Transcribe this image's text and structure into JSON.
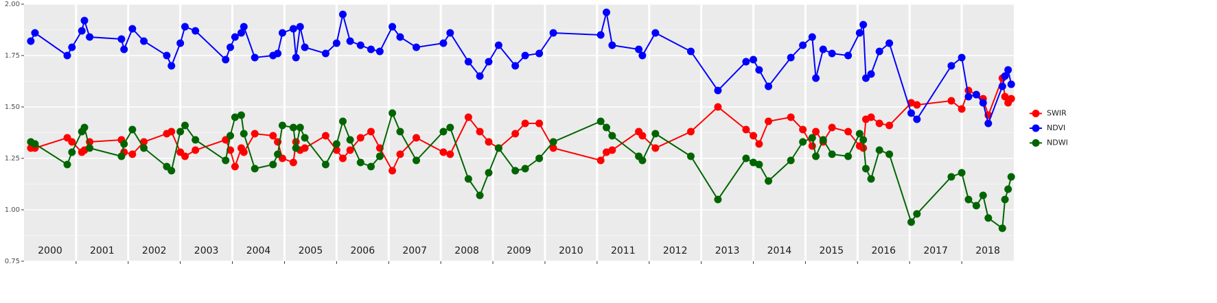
{
  "chart_data": {
    "type": "line",
    "year_labels": [
      "2000",
      "2001",
      "2002",
      "2003",
      "2004",
      "2005",
      "2006",
      "2007",
      "2008",
      "2009",
      "2010",
      "2011",
      "2012",
      "2013",
      "2014",
      "2015",
      "2016",
      "2017",
      "2018"
    ],
    "x": [
      2000.13,
      2000.21,
      2000.83,
      2000.92,
      2001.11,
      2001.16,
      2001.26,
      2001.87,
      2001.92,
      2002.08,
      2002.3,
      2002.74,
      2002.83,
      2003.0,
      2003.09,
      2003.29,
      2003.87,
      2003.96,
      2004.05,
      2004.17,
      2004.22,
      2004.43,
      2004.78,
      2004.87,
      2004.96,
      2005.17,
      2005.22,
      2005.3,
      2005.39,
      2005.79,
      2006.0,
      2006.12,
      2006.26,
      2006.46,
      2006.66,
      2006.83,
      2007.07,
      2007.22,
      2007.53,
      2008.05,
      2008.18,
      2008.53,
      2008.75,
      2008.92,
      2009.11,
      2009.43,
      2009.62,
      2009.89,
      2010.16,
      2011.07,
      2011.18,
      2011.29,
      2011.8,
      2011.87,
      2012.12,
      2012.8,
      2013.32,
      2013.86,
      2014.0,
      2014.11,
      2014.29,
      2014.72,
      2014.95,
      2015.13,
      2015.2,
      2015.34,
      2015.51,
      2015.82,
      2016.04,
      2016.11,
      2016.16,
      2016.26,
      2016.42,
      2016.61,
      2017.03,
      2017.14,
      2017.8,
      2018.0,
      2018.13,
      2018.28,
      2018.41,
      2018.51,
      2018.78,
      2018.83,
      2018.89,
      2018.95
    ],
    "series": [
      {
        "name": "SWIR",
        "color": "#ff0000",
        "values": [
          1.3,
          1.3,
          1.35,
          1.33,
          1.28,
          1.29,
          1.33,
          1.34,
          1.28,
          1.27,
          1.33,
          1.37,
          1.38,
          1.28,
          1.26,
          1.29,
          1.34,
          1.29,
          1.21,
          1.3,
          1.28,
          1.37,
          1.36,
          1.33,
          1.25,
          1.23,
          1.33,
          1.29,
          1.3,
          1.36,
          1.29,
          1.25,
          1.29,
          1.35,
          1.38,
          1.3,
          1.19,
          1.27,
          1.35,
          1.28,
          1.27,
          1.45,
          1.38,
          1.33,
          1.3,
          1.37,
          1.42,
          1.42,
          1.3,
          1.24,
          1.28,
          1.29,
          1.38,
          1.36,
          1.3,
          1.38,
          1.5,
          1.39,
          1.36,
          1.32,
          1.43,
          1.45,
          1.39,
          1.31,
          1.38,
          1.33,
          1.4,
          1.38,
          1.31,
          1.3,
          1.44,
          1.45,
          1.42,
          1.41,
          1.52,
          1.51,
          1.53,
          1.49,
          1.58,
          1.56,
          1.54,
          1.46,
          1.64,
          1.55,
          1.52,
          1.54
        ]
      },
      {
        "name": "NDVI",
        "color": "#0000ff",
        "values": [
          1.82,
          1.86,
          1.75,
          1.79,
          1.87,
          1.92,
          1.84,
          1.83,
          1.78,
          1.88,
          1.82,
          1.75,
          1.7,
          1.81,
          1.89,
          1.87,
          1.73,
          1.79,
          1.84,
          1.86,
          1.89,
          1.74,
          1.75,
          1.76,
          1.86,
          1.88,
          1.74,
          1.89,
          1.79,
          1.76,
          1.81,
          1.95,
          1.82,
          1.8,
          1.78,
          1.77,
          1.89,
          1.84,
          1.79,
          1.81,
          1.86,
          1.72,
          1.65,
          1.72,
          1.8,
          1.7,
          1.75,
          1.76,
          1.86,
          1.85,
          1.96,
          1.8,
          1.78,
          1.75,
          1.86,
          1.77,
          1.58,
          1.72,
          1.73,
          1.68,
          1.6,
          1.74,
          1.8,
          1.84,
          1.64,
          1.78,
          1.76,
          1.75,
          1.86,
          1.9,
          1.64,
          1.66,
          1.77,
          1.81,
          1.47,
          1.44,
          1.7,
          1.74,
          1.55,
          1.56,
          1.52,
          1.42,
          1.6,
          1.65,
          1.68,
          1.61
        ]
      },
      {
        "name": "NDWI",
        "color": "#006400",
        "values": [
          1.33,
          1.32,
          1.22,
          1.28,
          1.38,
          1.4,
          1.3,
          1.26,
          1.32,
          1.39,
          1.3,
          1.21,
          1.19,
          1.38,
          1.41,
          1.34,
          1.24,
          1.36,
          1.45,
          1.46,
          1.37,
          1.2,
          1.22,
          1.27,
          1.41,
          1.4,
          1.3,
          1.4,
          1.35,
          1.22,
          1.32,
          1.43,
          1.34,
          1.23,
          1.21,
          1.26,
          1.47,
          1.38,
          1.24,
          1.38,
          1.4,
          1.15,
          1.07,
          1.18,
          1.3,
          1.19,
          1.2,
          1.25,
          1.33,
          1.43,
          1.4,
          1.36,
          1.26,
          1.24,
          1.37,
          1.26,
          1.05,
          1.25,
          1.23,
          1.22,
          1.14,
          1.24,
          1.33,
          1.35,
          1.26,
          1.34,
          1.27,
          1.26,
          1.37,
          1.34,
          1.2,
          1.15,
          1.29,
          1.27,
          0.94,
          0.98,
          1.16,
          1.18,
          1.05,
          1.02,
          1.07,
          0.96,
          0.91,
          1.05,
          1.1,
          1.16
        ]
      }
    ],
    "xlim": [
      2000,
      2019
    ],
    "xticks": [
      2001,
      2002,
      2003,
      2004,
      2005,
      2006,
      2007,
      2008,
      2009,
      2010,
      2011,
      2012,
      2013,
      2014,
      2015,
      2016,
      2017,
      2018
    ],
    "ylim": [
      0.75,
      2.0
    ],
    "yticks": [
      0.75,
      {
        "value": 1,
        "label": "1.00"
      },
      1.25,
      {
        "value": 1.5,
        "label": "1.50"
      },
      1.75,
      {
        "value": 2,
        "label": "2.00"
      }
    ],
    "grid": true,
    "legend": "right"
  }
}
